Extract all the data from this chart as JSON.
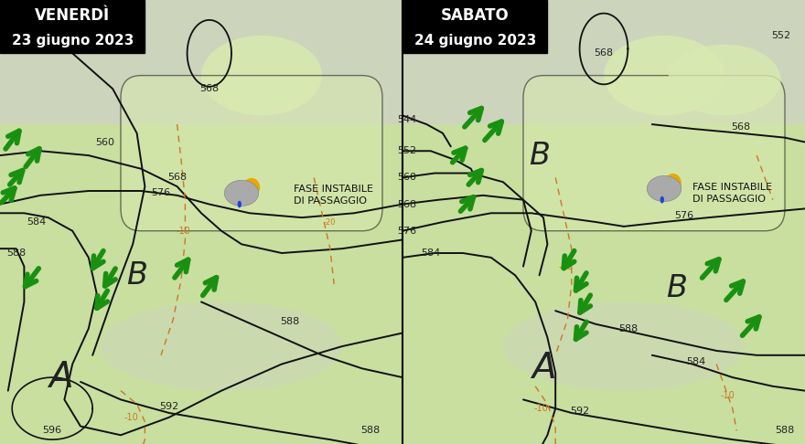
{
  "title_left": "VENERDÌ",
  "subtitle_left": "23 giugno 2023",
  "title_right": "SABATO",
  "subtitle_right": "24 giugno 2023",
  "bg_green": "#c8dfa0",
  "bg_sea": "#d0d0c8",
  "bg_light_green": "#d8eab0",
  "contour_color": "#111111",
  "orange_color": "#cc7722",
  "green_arrow": "#1a9010",
  "title_bg": "#000000",
  "title_fg": "#ffffff",
  "label_dark": "#222222",
  "label_fontsize": 8,
  "title_fontsize": 12,
  "AB_fontsize_A": 28,
  "AB_fontsize_B": 24,
  "fase_fontsize": 8
}
